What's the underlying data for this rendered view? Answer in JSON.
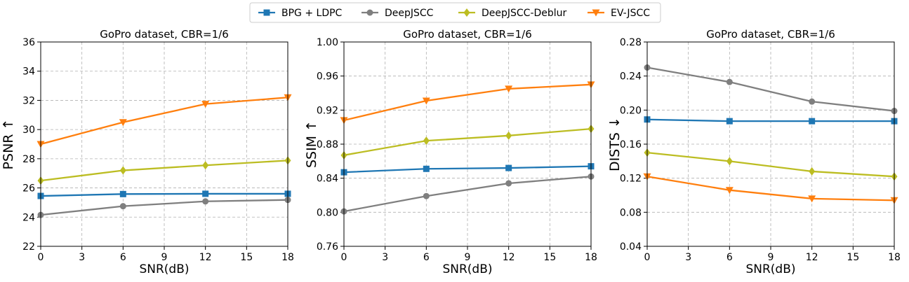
{
  "chart_data": [
    {
      "type": "line",
      "title": "GoPro dataset, CBR=1/6",
      "xlabel": "SNR(dB)",
      "ylabel": "PSNR ↑",
      "x": [
        0,
        6,
        12,
        18
      ],
      "xticks": [
        "0",
        "3",
        "6",
        "9",
        "12",
        "15",
        "18"
      ],
      "xlim": [
        0,
        18
      ],
      "ylim": [
        22,
        36
      ],
      "yticks": [
        "22",
        "24",
        "26",
        "28",
        "30",
        "32",
        "34",
        "36"
      ],
      "grid": true,
      "series": [
        {
          "name": "BPG + LDPC",
          "values": [
            25.45,
            25.58,
            25.6,
            25.6
          ]
        },
        {
          "name": "DeepJSCC",
          "values": [
            24.15,
            24.75,
            25.08,
            25.18
          ]
        },
        {
          "name": "DeepJSCC-Deblur",
          "values": [
            26.5,
            27.2,
            27.55,
            27.88
          ]
        },
        {
          "name": "EV-JSCC",
          "values": [
            29.0,
            30.5,
            31.75,
            32.2
          ]
        }
      ]
    },
    {
      "type": "line",
      "title": "GoPro dataset, CBR=1/6",
      "xlabel": "SNR(dB)",
      "ylabel": "SSIM ↑",
      "x": [
        0,
        6,
        12,
        18
      ],
      "xticks": [
        "0",
        "3",
        "6",
        "9",
        "12",
        "15",
        "18"
      ],
      "xlim": [
        0,
        18
      ],
      "ylim": [
        0.76,
        1.0
      ],
      "yticks": [
        "0.76",
        "0.80",
        "0.84",
        "0.88",
        "0.92",
        "0.96",
        "1.00"
      ],
      "grid": true,
      "series": [
        {
          "name": "BPG + LDPC",
          "values": [
            0.847,
            0.851,
            0.852,
            0.854
          ]
        },
        {
          "name": "DeepJSCC",
          "values": [
            0.801,
            0.819,
            0.834,
            0.842
          ]
        },
        {
          "name": "DeepJSCC-Deblur",
          "values": [
            0.867,
            0.884,
            0.89,
            0.898
          ]
        },
        {
          "name": "EV-JSCC",
          "values": [
            0.908,
            0.931,
            0.945,
            0.95
          ]
        }
      ]
    },
    {
      "type": "line",
      "title": "GoPro dataset, CBR=1/6",
      "xlabel": "SNR(dB)",
      "ylabel": "DISTS ↓",
      "x": [
        0,
        6,
        12,
        18
      ],
      "xticks": [
        "0",
        "3",
        "6",
        "9",
        "12",
        "15",
        "18"
      ],
      "xlim": [
        0,
        18
      ],
      "ylim": [
        0.04,
        0.28
      ],
      "yticks": [
        "0.04",
        "0.08",
        "0.12",
        "0.16",
        "0.20",
        "0.24",
        "0.28"
      ],
      "grid": true,
      "series": [
        {
          "name": "BPG + LDPC",
          "values": [
            0.189,
            0.187,
            0.187,
            0.187
          ]
        },
        {
          "name": "DeepJSCC",
          "values": [
            0.25,
            0.233,
            0.21,
            0.199
          ]
        },
        {
          "name": "DeepJSCC-Deblur",
          "values": [
            0.15,
            0.14,
            0.128,
            0.122
          ]
        },
        {
          "name": "EV-JSCC",
          "values": [
            0.122,
            0.106,
            0.096,
            0.094
          ]
        }
      ]
    }
  ],
  "legend": {
    "placement": "top-center",
    "entries": [
      {
        "name": "BPG + LDPC",
        "color": "#1f77b4",
        "marker": "square"
      },
      {
        "name": "DeepJSCC",
        "color": "#7f7f7f",
        "marker": "circle"
      },
      {
        "name": "DeepJSCC-Deblur",
        "color": "#bcbd22",
        "marker": "diamond"
      },
      {
        "name": "EV-JSCC",
        "color": "#ff7f0e",
        "marker": "triangle-down"
      }
    ]
  }
}
